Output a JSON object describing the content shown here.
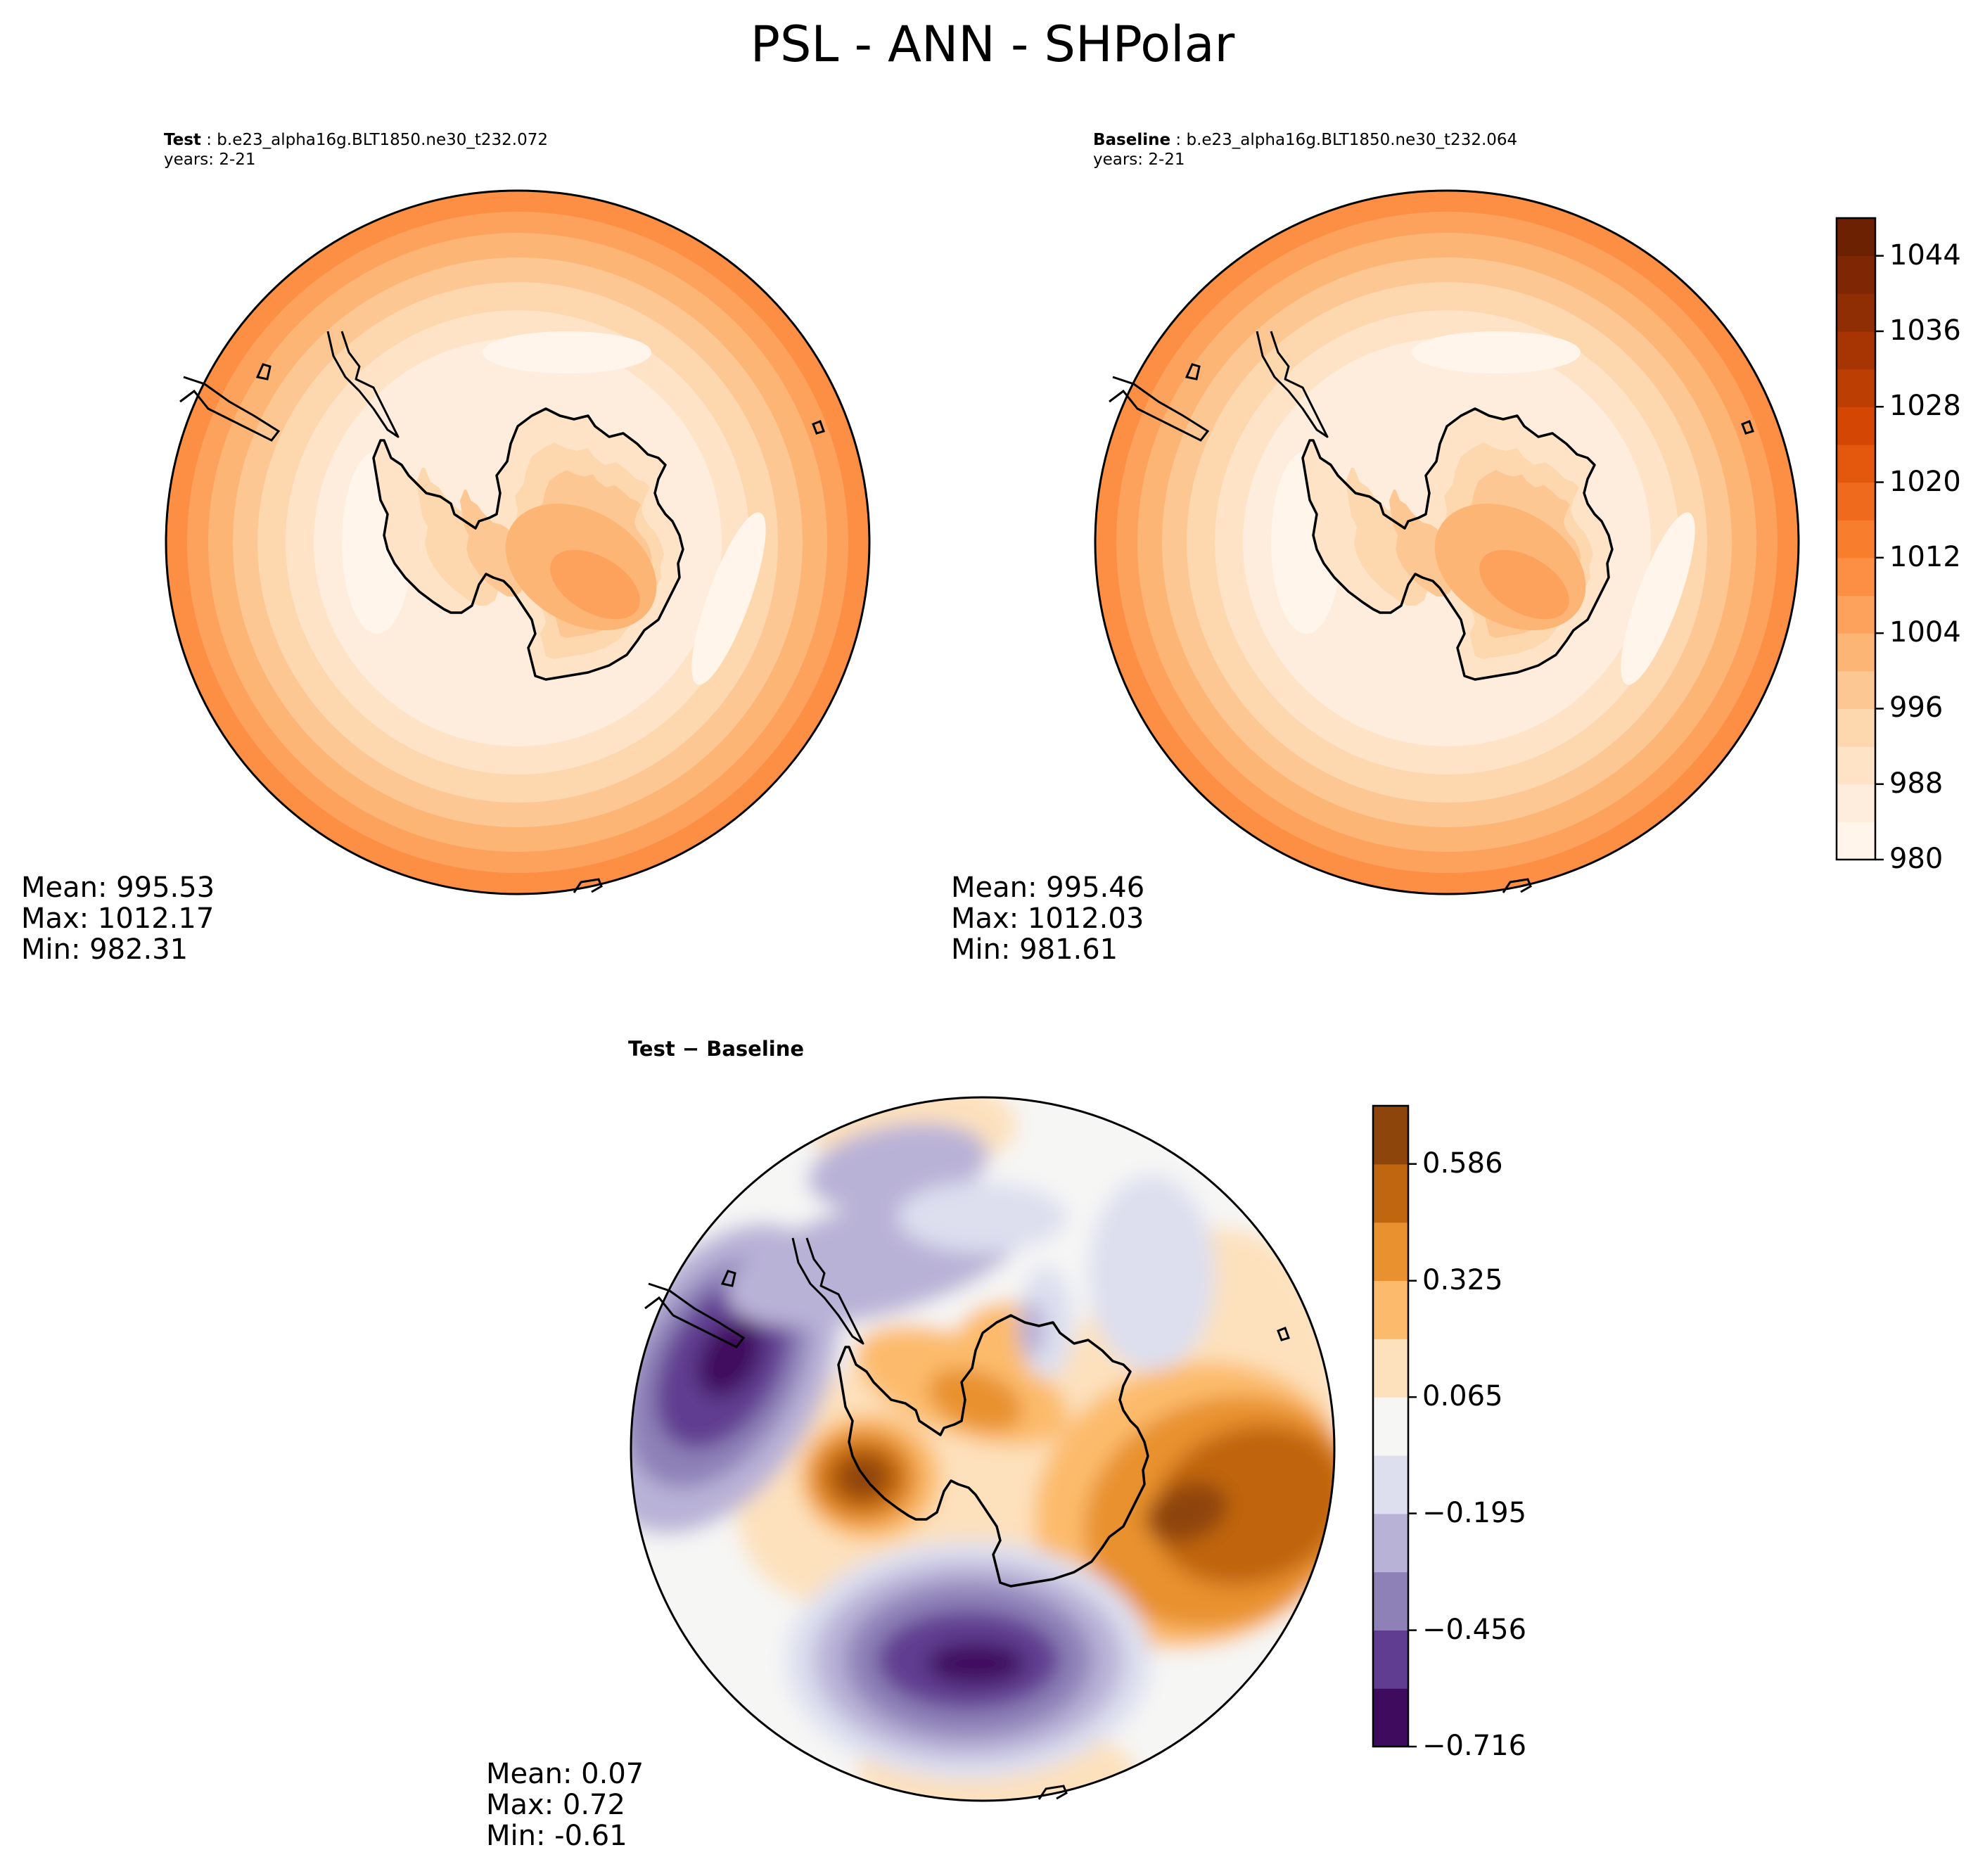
{
  "chart_data": [
    {
      "type": "heatmap",
      "projection": "south-polar-stereographic",
      "title": "PSL - ANN - SHPolar",
      "panel_label": "Test",
      "case_name": "b.e23_alpha16g.BLT1850.ne30_t232.072",
      "years": "years: 2-21",
      "stats": {
        "mean": "Mean: 995.53",
        "max": "Max: 1012.17",
        "min": "Min: 982.31"
      },
      "colormap": "Oranges",
      "range": [
        980,
        1048
      ]
    },
    {
      "type": "heatmap",
      "projection": "south-polar-stereographic",
      "panel_label": "Baseline",
      "case_name": "b.e23_alpha16g.BLT1850.ne30_t232.064",
      "years": "years: 2-21",
      "stats": {
        "mean": "Mean: 995.46",
        "max": "Max: 1012.03",
        "min": "Min: 981.61"
      },
      "colormap": "Oranges",
      "colorbar": {
        "levels": [
          980,
          984,
          988,
          992,
          996,
          1000,
          1004,
          1008,
          1012,
          1016,
          1020,
          1024,
          1028,
          1032,
          1036,
          1040,
          1044,
          1048
        ],
        "tick_values": [
          980,
          988,
          996,
          1004,
          1012,
          1020,
          1028,
          1036,
          1044
        ],
        "tick_labels": [
          "980",
          "988",
          "996",
          "1004",
          "1012",
          "1020",
          "1028",
          "1036",
          "1044"
        ]
      }
    },
    {
      "type": "heatmap",
      "projection": "south-polar-stereographic",
      "panel_label": "Test − Baseline",
      "stats": {
        "mean": "Mean:  0.07",
        "max": "Max:  0.72",
        "min": "Min: -0.61"
      },
      "colormap": "PuOr_r",
      "colorbar": {
        "levels": [
          -0.716,
          -0.586,
          -0.456,
          -0.325,
          -0.195,
          -0.065,
          0.065,
          0.195,
          0.325,
          0.456,
          0.586,
          0.716
        ],
        "tick_values": [
          -0.716,
          -0.456,
          -0.195,
          0.065,
          0.325,
          0.586
        ],
        "tick_labels": [
          "−0.716",
          "−0.456",
          "−0.195",
          "0.065",
          "0.325",
          "0.586"
        ]
      }
    }
  ],
  "colors": {
    "seq": [
      "#fff5eb",
      "#feeddc",
      "#fee3c7",
      "#fdd7ae",
      "#fdc793",
      "#fdb576",
      "#fda25c",
      "#fd8f44",
      "#f87d2d",
      "#ef6a1c",
      "#e4580e",
      "#d44604",
      "#bd3e02",
      "#a63503",
      "#8f2d04",
      "#7f2704",
      "#6d2103"
    ],
    "div": [
      "#3f0b5f",
      "#603d91",
      "#8d81b7",
      "#b9b2d7",
      "#dddfef",
      "#f6f6f5",
      "#fde1bd",
      "#fcbb6c",
      "#e8912e",
      "#c06510",
      "#8e450c"
    ],
    "coast": "#000000"
  }
}
